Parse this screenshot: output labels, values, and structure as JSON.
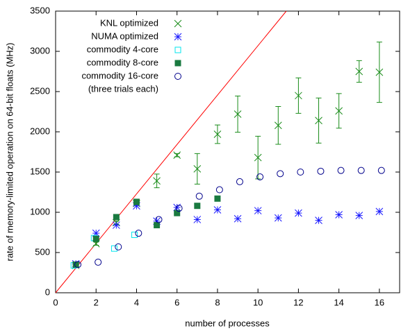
{
  "chart_data": {
    "type": "scatter",
    "x_label": "number of processes",
    "y_label": "rate of memory-limited operation on 64-bit floats (MHz)",
    "xlim": [
      0,
      17
    ],
    "xticks": [
      0,
      2,
      4,
      6,
      8,
      10,
      12,
      14,
      16
    ],
    "ylim": [
      0,
      3500
    ],
    "yticks": [
      0,
      500,
      1000,
      1500,
      2000,
      2500,
      3000,
      3500
    ],
    "legend_position": "upper left",
    "legend_note": "(three trials each)",
    "reference_line": {
      "color": "#ff0000",
      "x": [
        0,
        11.4
      ],
      "y": [
        0,
        3500
      ]
    },
    "series": [
      {
        "name": "KNL optimized",
        "color": "#1a8c1a",
        "marker": "x",
        "x": [
          1,
          2,
          3,
          4,
          5,
          6,
          7,
          8,
          9,
          10,
          11,
          12,
          13,
          14,
          15,
          16
        ],
        "values": [
          340,
          610,
          870,
          1110,
          1390,
          1710,
          1540,
          1970,
          2220,
          1680,
          2080,
          2450,
          2140,
          2260,
          2750,
          2740
        ],
        "errors": [
          20,
          20,
          20,
          20,
          85,
          20,
          190,
          115,
          225,
          265,
          235,
          220,
          280,
          215,
          135,
          375
        ]
      },
      {
        "name": "NUMA optimized",
        "color": "#1a1aff",
        "marker": "star",
        "x": [
          1,
          2,
          3,
          4,
          5,
          6,
          7,
          8,
          9,
          10,
          11,
          12,
          13,
          14,
          15,
          16
        ],
        "values": [
          360,
          740,
          840,
          1080,
          890,
          1060,
          910,
          1030,
          920,
          1020,
          930,
          990,
          900,
          970,
          960,
          1010
        ]
      },
      {
        "name": "commodity 4-core",
        "color": "#00e5ee",
        "marker": "square",
        "x": [
          0.9,
          1.9,
          2.9,
          3.9
        ],
        "values": [
          340,
          680,
          550,
          720
        ]
      },
      {
        "name": "commodity 8-core",
        "color": "#1a7a40",
        "marker": "filled-square",
        "x": [
          1,
          2,
          3,
          4,
          5,
          6,
          7,
          8
        ],
        "values": [
          350,
          670,
          940,
          1130,
          840,
          990,
          1080,
          1170
        ]
      },
      {
        "name": "commodity 16-core",
        "color": "#00008b",
        "marker": "circle",
        "x": [
          1.1,
          2.1,
          3.1,
          4.1,
          5.1,
          6.1,
          7.1,
          8.1,
          9.1,
          10.1,
          11.1,
          12.1,
          13.1,
          14.1,
          15.1,
          16.1
        ],
        "values": [
          350,
          380,
          570,
          740,
          910,
          1050,
          1200,
          1280,
          1380,
          1440,
          1480,
          1500,
          1510,
          1520,
          1520,
          1520
        ]
      }
    ]
  }
}
